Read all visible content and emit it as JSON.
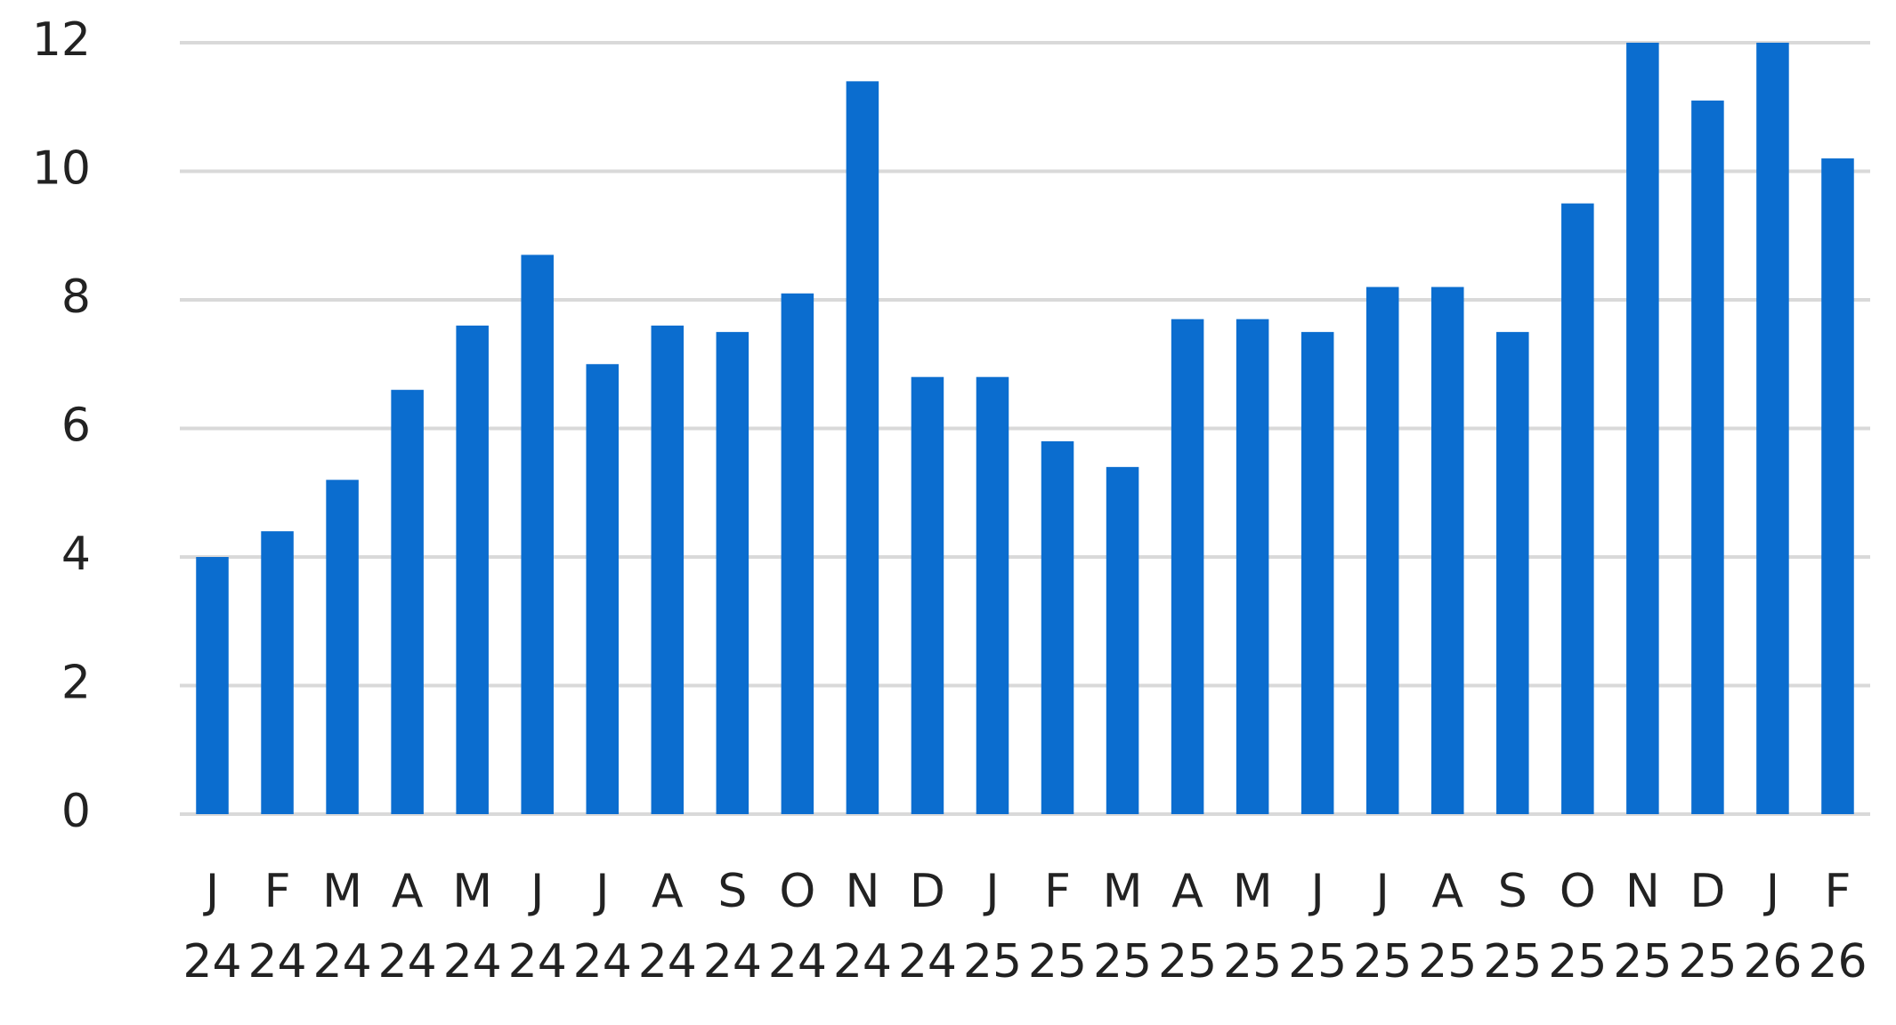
{
  "chart_data": {
    "type": "bar",
    "categories": [
      [
        "J",
        "24"
      ],
      [
        "F",
        "24"
      ],
      [
        "M",
        "24"
      ],
      [
        "A",
        "24"
      ],
      [
        "M",
        "24"
      ],
      [
        "J",
        "24"
      ],
      [
        "J",
        "24"
      ],
      [
        "A",
        "24"
      ],
      [
        "S",
        "24"
      ],
      [
        "O",
        "24"
      ],
      [
        "N",
        "24"
      ],
      [
        "D",
        "24"
      ],
      [
        "J",
        "25"
      ],
      [
        "F",
        "25"
      ],
      [
        "M",
        "25"
      ],
      [
        "A",
        "25"
      ],
      [
        "M",
        "25"
      ],
      [
        "J",
        "25"
      ],
      [
        "J",
        "25"
      ],
      [
        "A",
        "25"
      ],
      [
        "S",
        "25"
      ],
      [
        "O",
        "25"
      ],
      [
        "N",
        "25"
      ],
      [
        "D",
        "25"
      ],
      [
        "J",
        "26"
      ],
      [
        "F",
        "26"
      ]
    ],
    "values": [
      4.0,
      4.4,
      5.2,
      6.6,
      7.6,
      8.7,
      7.0,
      7.6,
      7.5,
      8.1,
      11.4,
      6.8,
      6.8,
      5.8,
      5.4,
      7.7,
      7.7,
      7.5,
      8.2,
      8.2,
      7.5,
      9.5,
      12,
      11.1,
      12,
      10.2
    ],
    "color": "#0b6dcf",
    "ylim": [
      0,
      12
    ],
    "yticks": [
      0,
      2,
      4,
      6,
      8,
      10,
      12
    ],
    "grid": true
  }
}
